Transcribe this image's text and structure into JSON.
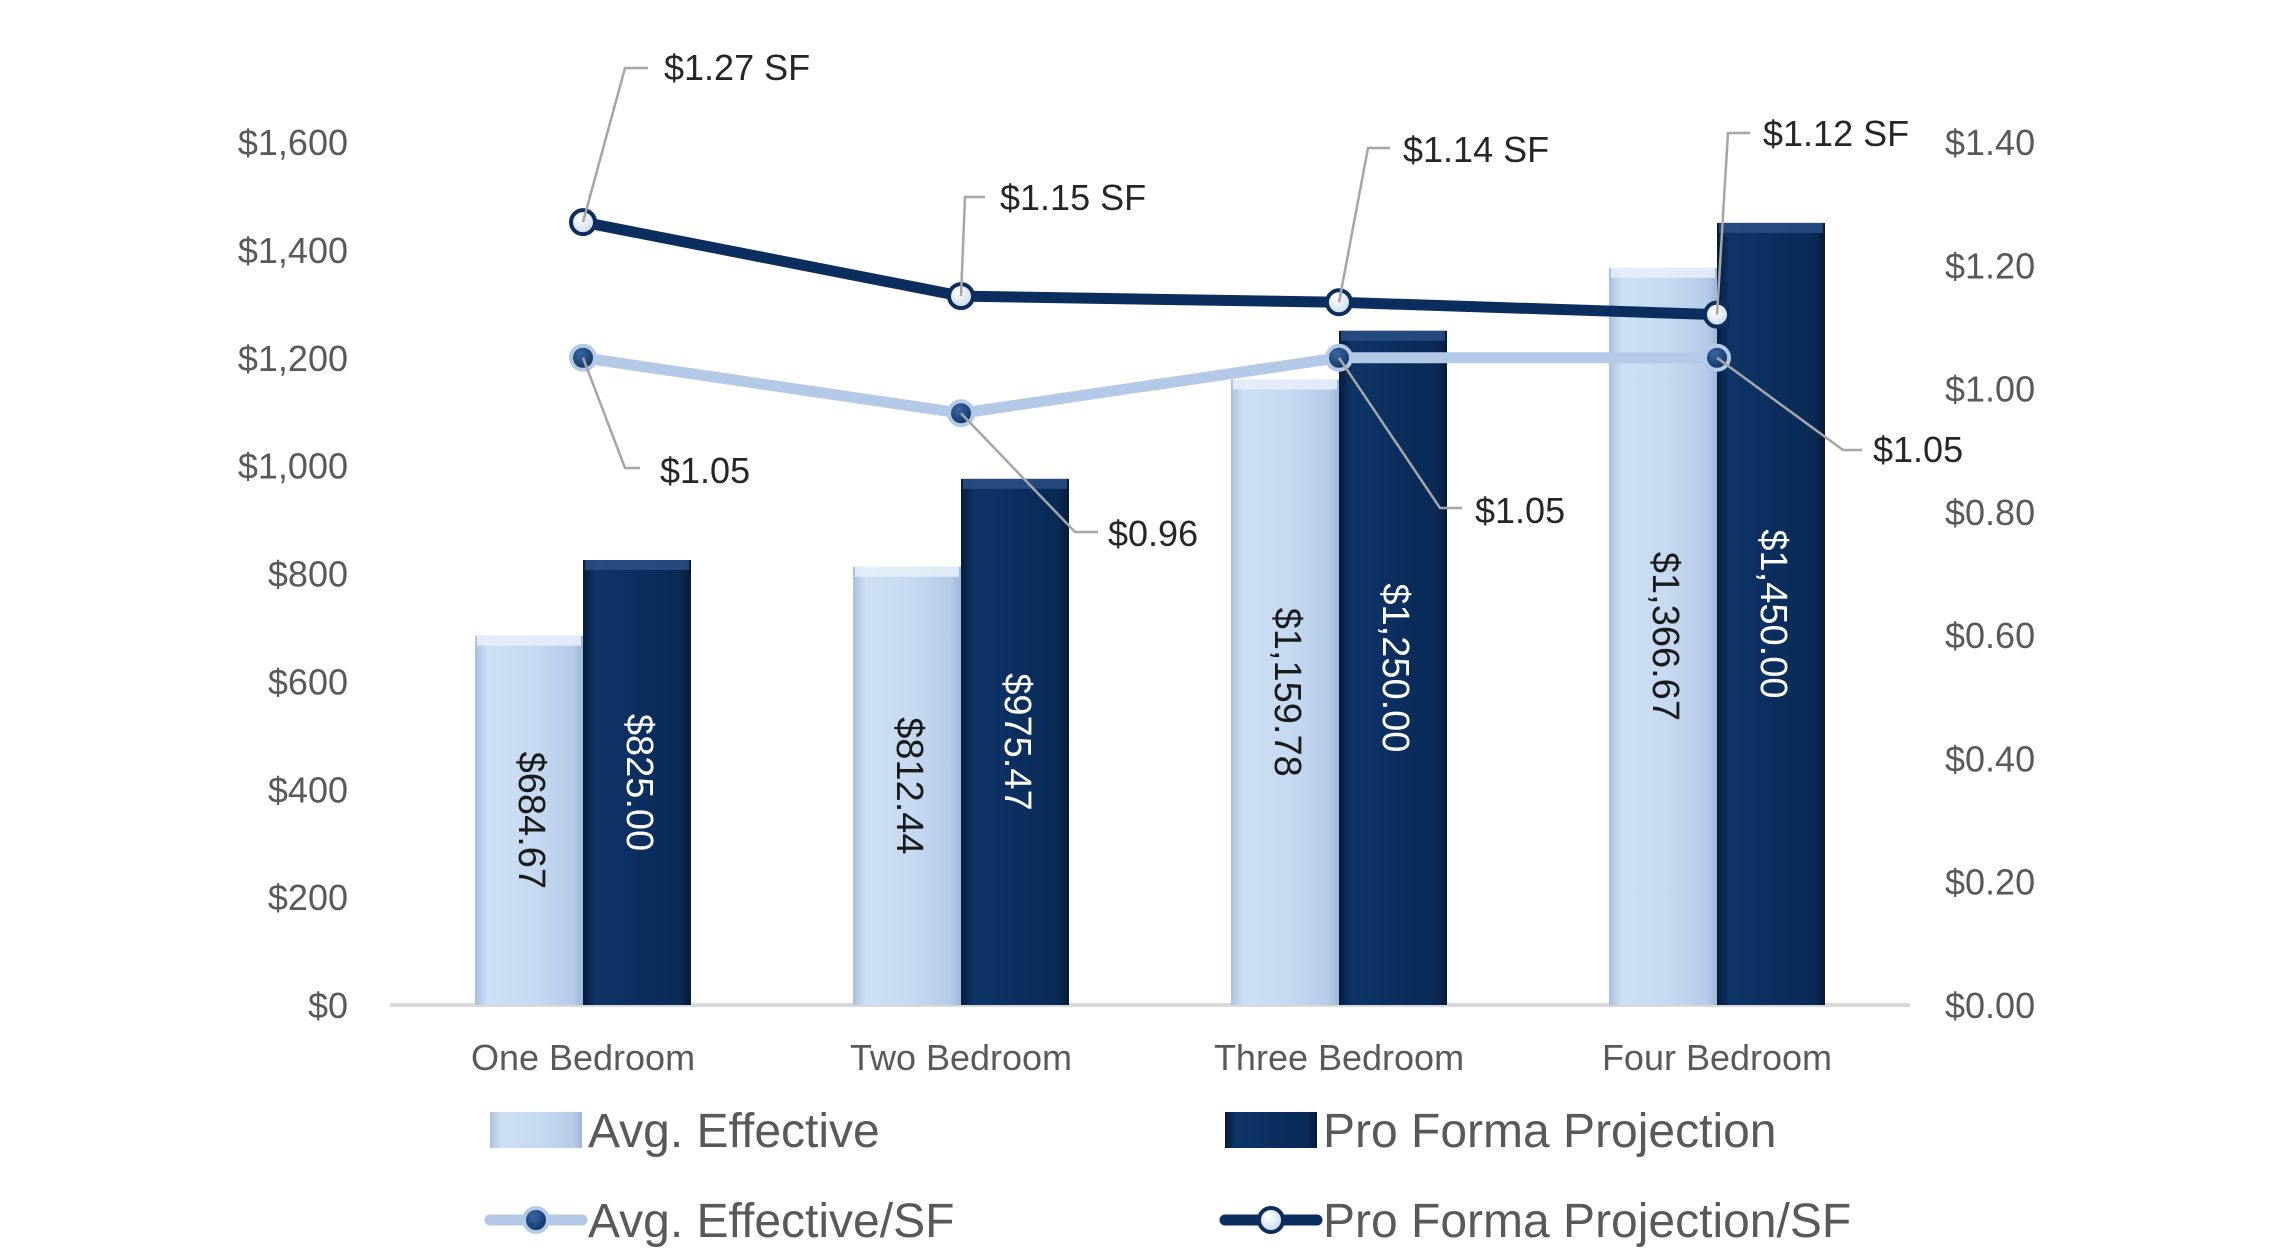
{
  "chart_data": {
    "type": "bar",
    "categories": [
      "One Bedroom",
      "Two Bedroom",
      "Three Bedroom",
      "Four Bedroom"
    ],
    "series": [
      {
        "name": "Avg. Effective",
        "kind": "bar",
        "axis": "left",
        "color": "#c5d9f1",
        "values": [
          684.67,
          812.44,
          1159.78,
          1366.67
        ],
        "labels": [
          "$684.67",
          "$812.44",
          "$1,159.78",
          "$1,366.67"
        ]
      },
      {
        "name": "Pro Forma Projection",
        "kind": "bar",
        "axis": "left",
        "color": "#0b2e5e",
        "values": [
          825.0,
          975.47,
          1250.0,
          1450.0
        ],
        "labels": [
          "$825.00",
          "$975.47",
          "$1,250.00",
          "$1,450.00"
        ]
      },
      {
        "name": "Avg. Effective/SF",
        "kind": "line",
        "axis": "right",
        "color": "#b3c9e6",
        "values": [
          1.05,
          0.96,
          1.05,
          1.05
        ],
        "labels": [
          "$1.05",
          "$0.96",
          "$1.05",
          "$1.05"
        ]
      },
      {
        "name": "Pro Forma Projection/SF",
        "kind": "line",
        "axis": "right",
        "color": "#0b2e5e",
        "values": [
          1.27,
          1.15,
          1.14,
          1.12
        ],
        "labels": [
          "$1.27 SF",
          "$1.15 SF",
          "$1.14 SF",
          "$1.12 SF"
        ]
      }
    ],
    "y_left": {
      "min": 0,
      "max": 1600,
      "step": 200,
      "ticks": [
        "$0",
        "$200",
        "$400",
        "$600",
        "$800",
        "$1,000",
        "$1,200",
        "$1,400",
        "$1,600"
      ]
    },
    "y_right": {
      "min": 0,
      "max": 1.4,
      "step": 0.2,
      "ticks": [
        "$0.00",
        "$0.20",
        "$0.40",
        "$0.60",
        "$0.80",
        "$1.00",
        "$1.20",
        "$1.40"
      ]
    },
    "legend": {
      "position": "bottom",
      "entries": [
        "Avg. Effective",
        "Pro Forma Projection",
        "Avg. Effective/SF",
        "Pro Forma Projection/SF"
      ]
    },
    "grid": false
  }
}
